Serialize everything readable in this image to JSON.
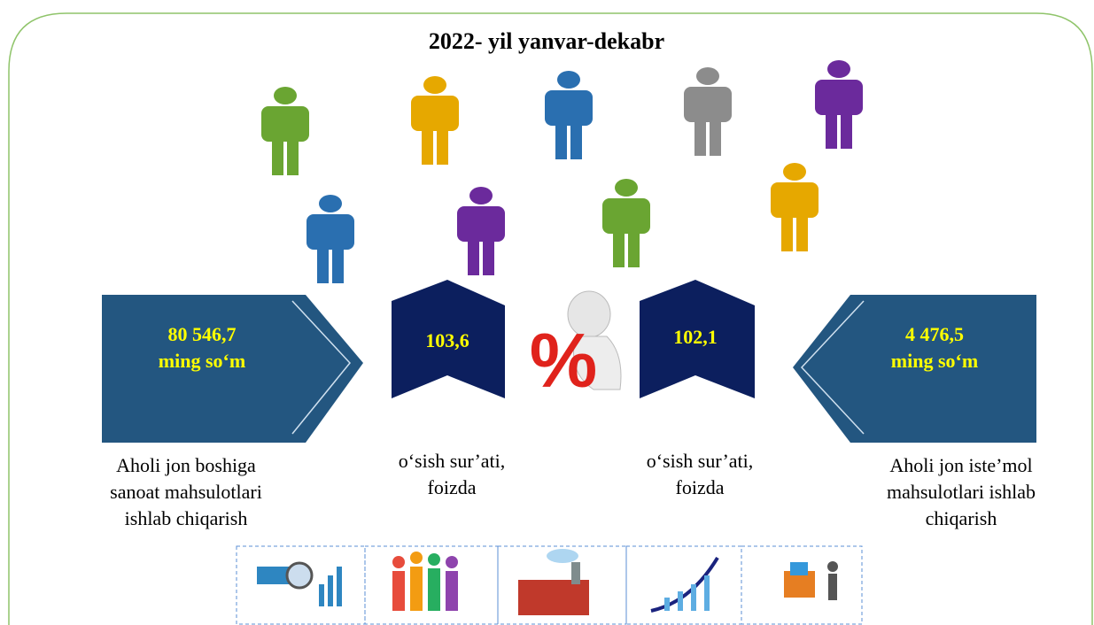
{
  "title": "2022- yil yanvar-dekabr",
  "percent_sign": "%",
  "panels": [
    {
      "value": "80 546,7",
      "unit": "ming so‘m",
      "caption": [
        "Aholi jon boshiga",
        "sanoat mahsulotlari",
        "ishlab chiqarish"
      ]
    },
    {
      "value": "103,6",
      "caption": [
        "o‘sish sur’ati,",
        "foizda"
      ]
    },
    {
      "value": "102,1",
      "caption": [
        "o‘sish sur’ati,",
        "foizda"
      ]
    },
    {
      "value": "4 476,5",
      "unit": "ming so‘m",
      "caption": [
        "Aholi jon iste’mol",
        "mahsulotlari ishlab",
        "chiqarish"
      ]
    }
  ]
}
